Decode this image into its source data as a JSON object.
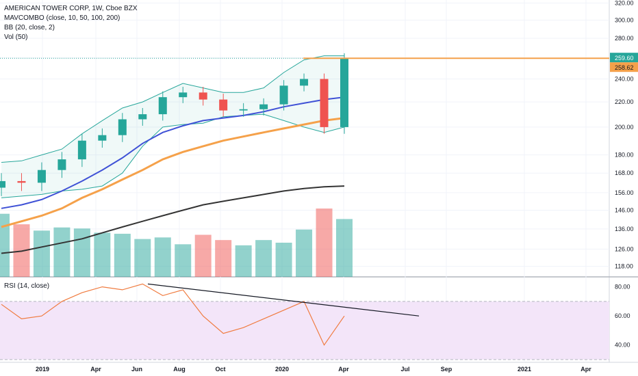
{
  "legend": {
    "symbol_line": "AMERICAN TOWER CORP, 1W, Cboe BZX",
    "indicators": [
      "MAVCOMBO (close, 10, 50, 100, 200)",
      "BB (20, close, 2)",
      "Vol (50)"
    ],
    "rsi": "RSI (14, close)"
  },
  "price_axis": {
    "ticks": [
      "320.00",
      "300.00",
      "280.00",
      "260.00",
      "240.00",
      "220.00",
      "200.00",
      "180.00",
      "168.00",
      "156.00",
      "146.00",
      "136.00",
      "126.00",
      "118.00"
    ],
    "last_price": "259.60",
    "prev_marker": "258.62"
  },
  "rsi_axis": {
    "ticks": [
      "80.00",
      "60.00",
      "40.00"
    ]
  },
  "time_axis": {
    "labels": [
      "2019",
      "Apr",
      "Jun",
      "Aug",
      "Oct",
      "2020",
      "Apr",
      "Jul",
      "Sep",
      "2021",
      "Apr"
    ]
  },
  "colors": {
    "up": "#26a69a",
    "down": "#ef5350",
    "ma10": "#e57373",
    "ma50": "#3f51d6",
    "ma100": "#f5a14a",
    "ma200": "#333333",
    "bb": "#26a69a",
    "rsi": "#f07b3f",
    "rsi_band": "#f3e5f9"
  },
  "chart_data": [
    {
      "type": "candlestick",
      "title": "AMERICAN TOWER CORP, 1W, Cboe BZX",
      "x": [
        "2018-11",
        "2018-12",
        "2019-01",
        "2019-02",
        "2019-03",
        "2019-04",
        "2019-05",
        "2019-06",
        "2019-07",
        "2019-08",
        "2019-09",
        "2019-10",
        "2019-11",
        "2019-12",
        "2020-01",
        "2020-02",
        "2020-03",
        "2020-04"
      ],
      "close": [
        163,
        162,
        170,
        177,
        190,
        194,
        206,
        210,
        224,
        228,
        222,
        213,
        214,
        218,
        234,
        240,
        200,
        259.6
      ],
      "ma200": [
        124,
        125,
        127,
        129,
        131,
        134,
        137,
        140,
        143,
        146,
        149,
        151,
        153,
        155,
        157,
        158.5,
        159.5,
        160
      ],
      "ma100": [
        137,
        140,
        143,
        147,
        153,
        158,
        164,
        170,
        177,
        182,
        186,
        190,
        193,
        196,
        199,
        202,
        205,
        207
      ],
      "ma50": [
        147,
        149,
        152,
        157,
        163,
        170,
        178,
        188,
        196,
        201,
        205,
        207,
        209,
        212,
        216,
        219,
        222,
        224
      ],
      "bb_upper": [
        175,
        176,
        180,
        184,
        195,
        205,
        215,
        220,
        228,
        236,
        232,
        228,
        228,
        232,
        246,
        258,
        262,
        262
      ],
      "bb_lower": [
        153,
        154,
        155,
        157,
        158,
        160,
        168,
        186,
        200,
        202,
        203,
        208,
        209,
        210,
        205,
        200,
        196,
        200
      ],
      "volume": [
        120,
        100,
        88,
        94,
        92,
        84,
        82,
        72,
        75,
        62,
        80,
        70,
        60,
        70,
        65,
        90,
        130,
        110
      ],
      "yrange": [
        118,
        320
      ],
      "last_price": 259.6
    },
    {
      "type": "line",
      "title": "RSI (14, close)",
      "x": [
        "2018-11",
        "2018-12",
        "2019-01",
        "2019-02",
        "2019-03",
        "2019-04",
        "2019-05",
        "2019-06",
        "2019-07",
        "2019-08",
        "2019-09",
        "2019-10",
        "2019-11",
        "2019-12",
        "2020-01",
        "2020-02",
        "2020-03",
        "2020-04"
      ],
      "values": [
        68,
        58,
        60,
        70,
        76,
        80,
        78,
        82,
        74,
        78,
        60,
        48,
        52,
        58,
        64,
        70,
        40,
        60
      ],
      "yrange": [
        30,
        85
      ],
      "band": [
        30,
        70
      ]
    }
  ]
}
